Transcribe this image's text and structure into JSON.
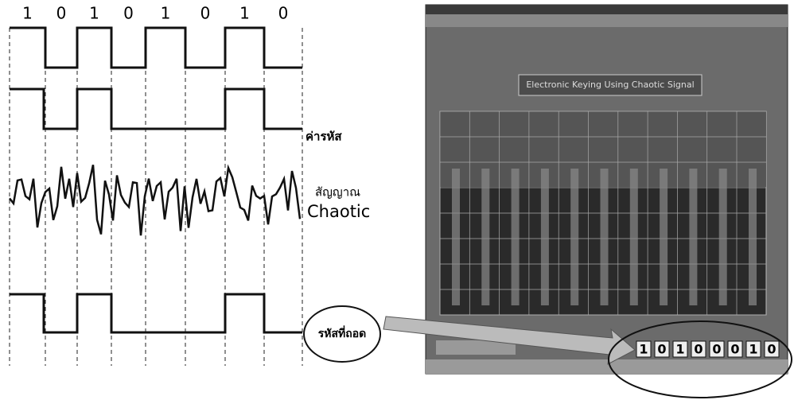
{
  "input_bits": [
    "1",
    "0",
    "1",
    "0",
    "1",
    "0",
    "1",
    "0"
  ],
  "labels": {
    "code": "ค่ารหัส",
    "chaotic_thai": "สัญญาณ",
    "chaotic": "Chaotic",
    "decoded": "รหัสที่ถอด"
  },
  "screenshot": {
    "heading": "Electronic Keying Using Chaotic Signal",
    "decoded_bits": [
      "1",
      "0",
      "1",
      "0",
      "0",
      "0",
      "1",
      "0"
    ]
  }
}
